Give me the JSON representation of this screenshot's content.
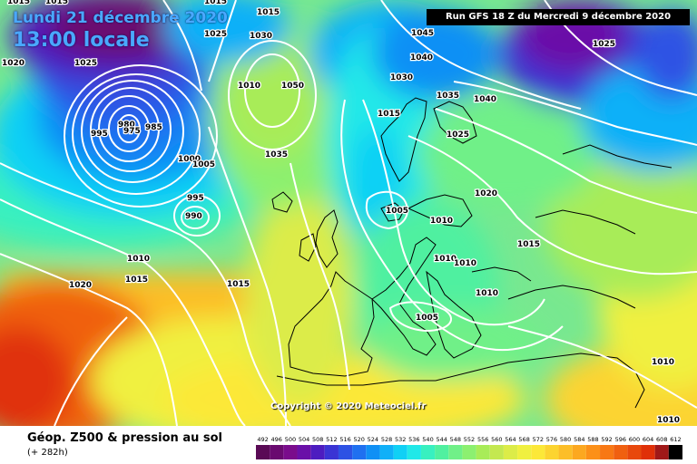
{
  "header": {
    "date": "Lundi 21 décembre 2020",
    "local_time": "13:00 locale",
    "run": "Run GFS 18 Z du Mercredi 9 décembre 2020"
  },
  "copyright": "Copyright © 2020 Meteociel.fr",
  "legend": {
    "title": "Géop. Z500 & pression au sol",
    "subtitle": "(+ 282h)",
    "scale_values": [
      "492",
      "496",
      "500",
      "504",
      "508",
      "512",
      "516",
      "520",
      "524",
      "528",
      "532",
      "536",
      "540",
      "544",
      "548",
      "552",
      "556",
      "560",
      "564",
      "568",
      "572",
      "576",
      "580",
      "584",
      "588",
      "592",
      "596",
      "600",
      "604",
      "608",
      "612"
    ],
    "scale_colors": [
      "#5a0a55",
      "#6a0a70",
      "#7a0c8c",
      "#6a10a8",
      "#4d1cc0",
      "#3a34d4",
      "#2d52e4",
      "#1f70f0",
      "#1090f5",
      "#10b0f8",
      "#10d0f5",
      "#20e8e8",
      "#38f0c0",
      "#50f0a0",
      "#70f088",
      "#8cf070",
      "#a8ec58",
      "#c4e850",
      "#dcec48",
      "#f0f040",
      "#fce838",
      "#fcd430",
      "#fcbe28",
      "#fca820",
      "#fc9018",
      "#f87814",
      "#f06010",
      "#e8480c",
      "#e03008",
      "#a01818",
      "#000000"
    ]
  },
  "map_labels": [
    {
      "text": "1015"
    },
    {
      "text": "1015"
    },
    {
      "text": "1015"
    },
    {
      "text": "1015"
    },
    {
      "text": "1025"
    },
    {
      "text": "1030"
    },
    {
      "text": "1020"
    },
    {
      "text": "1025"
    },
    {
      "text": "1010"
    },
    {
      "text": "1050"
    },
    {
      "text": "995"
    },
    {
      "text": "980"
    },
    {
      "text": "975"
    },
    {
      "text": "985"
    },
    {
      "text": "1000"
    },
    {
      "text": "1005"
    },
    {
      "text": "995"
    },
    {
      "text": "990"
    },
    {
      "text": "1035"
    },
    {
      "text": "1010"
    },
    {
      "text": "1015"
    },
    {
      "text": "1020"
    },
    {
      "text": "1015"
    },
    {
      "text": "1045"
    },
    {
      "text": "1040"
    },
    {
      "text": "1030"
    },
    {
      "text": "1035"
    },
    {
      "text": "1040"
    },
    {
      "text": "1015"
    },
    {
      "text": "1025"
    },
    {
      "text": "1025"
    },
    {
      "text": "1005"
    },
    {
      "text": "1010"
    },
    {
      "text": "1020"
    },
    {
      "text": "1015"
    },
    {
      "text": "1010"
    },
    {
      "text": "1010"
    },
    {
      "text": "1010"
    },
    {
      "text": "1005"
    },
    {
      "text": "1010"
    },
    {
      "text": "1010"
    }
  ]
}
